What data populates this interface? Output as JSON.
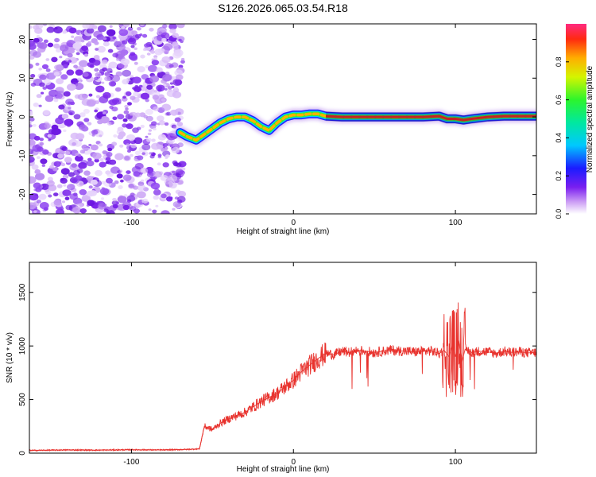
{
  "figure": {
    "title": "S126.2026.065.03.54.R18"
  },
  "colorbar": {
    "label": "Normalized spectral amplitude",
    "ticks": [
      "0.0",
      "0.2",
      "0.4",
      "0.6",
      "0.8"
    ],
    "range": [
      0,
      1
    ]
  },
  "chart_data": [
    {
      "type": "heatmap",
      "xlabel": "Height of straight line (km)",
      "ylabel": "Frequency (Hz)",
      "xlim": [
        -163,
        150
      ],
      "ylim": [
        -25,
        24
      ],
      "xticks": [
        -100,
        0,
        100
      ],
      "yticks": [
        -20,
        -10,
        0,
        10,
        20
      ],
      "grid": false,
      "noise_region_x": [
        -163,
        -68
      ],
      "ridge": {
        "x": [
          -70,
          -66,
          -60,
          -55,
          -50,
          -45,
          -40,
          -35,
          -30,
          -25,
          -20,
          -15,
          -10,
          -5,
          0,
          5,
          10,
          15,
          20,
          30,
          40,
          60,
          80,
          90,
          95,
          100,
          105,
          110,
          120,
          130,
          140,
          150
        ],
        "y": [
          -4,
          -5,
          -6,
          -4.5,
          -3,
          -1.5,
          -0.5,
          0,
          0,
          -1,
          -2.5,
          -3.5,
          -1.5,
          0,
          0.5,
          0.5,
          0.8,
          0.8,
          0.2,
          0,
          0,
          0,
          0,
          0.2,
          -0.5,
          -0.5,
          -0.8,
          -0.5,
          0,
          0.2,
          0.2,
          0.2
        ]
      }
    },
    {
      "type": "line",
      "xlabel": "Height of straight line (km)",
      "ylabel": "SNR (10 * v/v)",
      "xlim": [
        -163,
        150
      ],
      "ylim": [
        0,
        1780
      ],
      "xticks": [
        -100,
        0,
        100
      ],
      "yticks": [
        0,
        500,
        1000,
        1500
      ],
      "grid": false,
      "series": [
        {
          "color": "#e8322d",
          "x": [
            -163,
            -140,
            -120,
            -100,
            -80,
            -65,
            -58,
            -55,
            -50,
            -45,
            -40,
            -35,
            -30,
            -25,
            -20,
            -15,
            -10,
            -5,
            0,
            5,
            10,
            15,
            20,
            25,
            30,
            35,
            40,
            45,
            50,
            55,
            60,
            65,
            70,
            75,
            80,
            85,
            88,
            90,
            93,
            96,
            98,
            100,
            102,
            104,
            106,
            110,
            115,
            120,
            125,
            130,
            135,
            140,
            145,
            150
          ],
          "y": [
            25,
            30,
            28,
            32,
            30,
            35,
            40,
            250,
            220,
            280,
            320,
            350,
            380,
            430,
            480,
            520,
            560,
            620,
            680,
            760,
            820,
            880,
            930,
            920,
            950,
            940,
            960,
            950,
            940,
            950,
            960,
            955,
            950,
            945,
            950,
            955,
            940,
            930,
            960,
            900,
            1000,
            900,
            1050,
            850,
            970,
            940,
            950,
            945,
            930,
            950,
            940,
            945,
            935,
            940
          ]
        }
      ]
    }
  ]
}
